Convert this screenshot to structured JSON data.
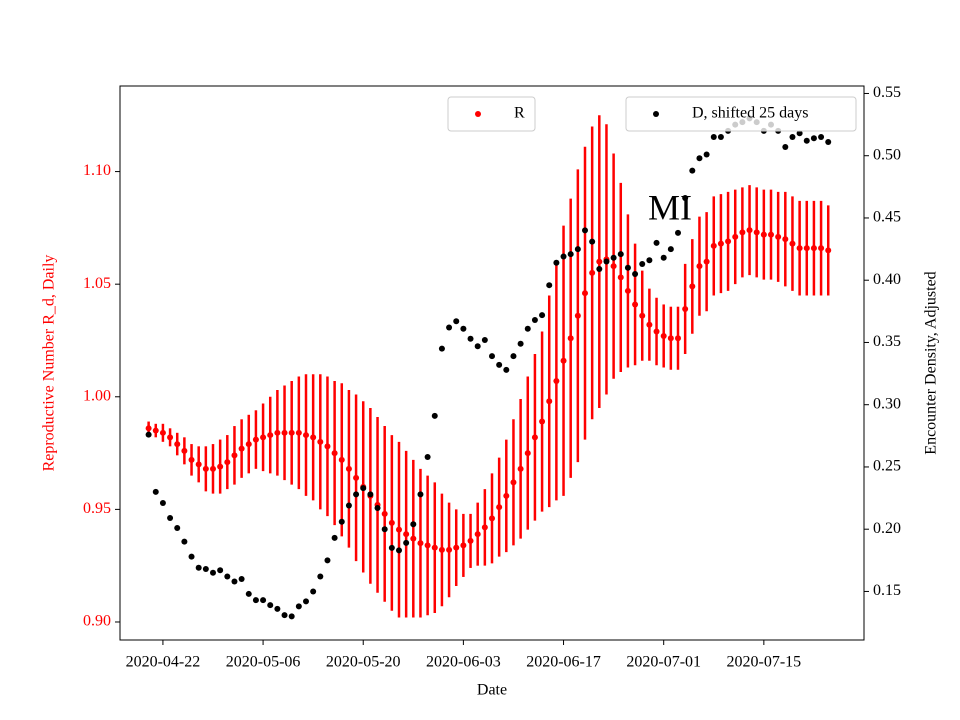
{
  "chart_data": {
    "type": "scatter",
    "annotation": "MI",
    "xlabel": "Date",
    "ylabel": "Reproductive Number R_d, Daily",
    "y2label": "Encounter Density, Adjusted",
    "x": [
      "2020-04-20",
      "2020-04-21",
      "2020-04-22",
      "2020-04-23",
      "2020-04-24",
      "2020-04-25",
      "2020-04-26",
      "2020-04-27",
      "2020-04-28",
      "2020-04-29",
      "2020-04-30",
      "2020-05-01",
      "2020-05-02",
      "2020-05-03",
      "2020-05-04",
      "2020-05-05",
      "2020-05-06",
      "2020-05-07",
      "2020-05-08",
      "2020-05-09",
      "2020-05-10",
      "2020-05-11",
      "2020-05-12",
      "2020-05-13",
      "2020-05-14",
      "2020-05-15",
      "2020-05-16",
      "2020-05-17",
      "2020-05-18",
      "2020-05-19",
      "2020-05-20",
      "2020-05-21",
      "2020-05-22",
      "2020-05-23",
      "2020-05-24",
      "2020-05-25",
      "2020-05-26",
      "2020-05-27",
      "2020-05-28",
      "2020-05-29",
      "2020-05-30",
      "2020-05-31",
      "2020-06-01",
      "2020-06-02",
      "2020-06-03",
      "2020-06-04",
      "2020-06-05",
      "2020-06-06",
      "2020-06-07",
      "2020-06-08",
      "2020-06-09",
      "2020-06-10",
      "2020-06-11",
      "2020-06-12",
      "2020-06-13",
      "2020-06-14",
      "2020-06-15",
      "2020-06-16",
      "2020-06-17",
      "2020-06-18",
      "2020-06-19",
      "2020-06-20",
      "2020-06-21",
      "2020-06-22",
      "2020-06-23",
      "2020-06-24",
      "2020-06-25",
      "2020-06-26",
      "2020-06-27",
      "2020-06-28",
      "2020-06-29",
      "2020-06-30",
      "2020-07-01",
      "2020-07-02",
      "2020-07-03",
      "2020-07-04",
      "2020-07-05",
      "2020-07-06",
      "2020-07-07",
      "2020-07-08",
      "2020-07-09",
      "2020-07-10",
      "2020-07-11",
      "2020-07-12",
      "2020-07-13",
      "2020-07-14",
      "2020-07-15",
      "2020-07-16",
      "2020-07-17",
      "2020-07-18",
      "2020-07-19",
      "2020-07-20",
      "2020-07-21",
      "2020-07-22",
      "2020-07-23",
      "2020-07-24"
    ],
    "series": [
      {
        "name": "R",
        "color": "#ff0000",
        "legend": "upper center",
        "values": [
          0.986,
          0.985,
          0.984,
          0.982,
          0.979,
          0.976,
          0.972,
          0.97,
          0.968,
          0.968,
          0.969,
          0.971,
          0.974,
          0.977,
          0.979,
          0.981,
          0.982,
          0.983,
          0.984,
          0.984,
          0.984,
          0.984,
          0.983,
          0.982,
          0.98,
          0.978,
          0.975,
          0.972,
          0.968,
          0.964,
          0.96,
          0.956,
          0.952,
          0.948,
          0.944,
          0.941,
          0.939,
          0.937,
          0.935,
          0.934,
          0.933,
          0.932,
          0.932,
          0.933,
          0.934,
          0.936,
          0.939,
          0.942,
          0.946,
          0.951,
          0.956,
          0.962,
          0.968,
          0.975,
          0.982,
          0.989,
          0.998,
          1.007,
          1.016,
          1.026,
          1.036,
          1.046,
          1.055,
          1.06,
          1.061,
          1.058,
          1.053,
          1.047,
          1.041,
          1.036,
          1.032,
          1.029,
          1.027,
          1.026,
          1.026,
          1.039,
          1.049,
          1.058,
          1.06,
          1.067,
          1.068,
          1.069,
          1.071,
          1.073,
          1.074,
          1.073,
          1.072,
          1.072,
          1.071,
          1.07,
          1.068,
          1.066,
          1.066,
          1.066,
          1.066,
          1.065
        ],
        "errors": [
          0.003,
          0.003,
          0.004,
          0.004,
          0.005,
          0.006,
          0.007,
          0.008,
          0.01,
          0.011,
          0.012,
          0.012,
          0.013,
          0.013,
          0.013,
          0.013,
          0.015,
          0.017,
          0.019,
          0.021,
          0.023,
          0.025,
          0.027,
          0.028,
          0.03,
          0.031,
          0.032,
          0.034,
          0.035,
          0.037,
          0.038,
          0.039,
          0.039,
          0.039,
          0.039,
          0.039,
          0.037,
          0.035,
          0.033,
          0.031,
          0.029,
          0.025,
          0.021,
          0.017,
          0.014,
          0.012,
          0.014,
          0.017,
          0.02,
          0.022,
          0.025,
          0.028,
          0.031,
          0.034,
          0.037,
          0.04,
          0.047,
          0.053,
          0.06,
          0.062,
          0.065,
          0.065,
          0.065,
          0.065,
          0.06,
          0.05,
          0.042,
          0.034,
          0.027,
          0.02,
          0.016,
          0.015,
          0.014,
          0.014,
          0.014,
          0.02,
          0.021,
          0.022,
          0.022,
          0.022,
          0.022,
          0.022,
          0.021,
          0.02,
          0.02,
          0.02,
          0.02,
          0.02,
          0.02,
          0.021,
          0.021,
          0.021,
          0.021,
          0.021,
          0.021,
          0.02
        ]
      },
      {
        "name": "D, shifted 25 days",
        "color": "#000000",
        "axis": "y2",
        "legend": "upper right",
        "values": [
          0.276,
          0.23,
          0.221,
          0.209,
          0.201,
          0.19,
          0.178,
          0.169,
          0.168,
          0.165,
          0.167,
          0.162,
          0.158,
          0.16,
          0.148,
          0.143,
          0.143,
          0.139,
          0.136,
          0.131,
          0.13,
          0.138,
          0.142,
          0.15,
          0.162,
          0.175,
          0.193,
          0.206,
          0.219,
          0.228,
          0.233,
          0.228,
          0.217,
          0.2,
          0.185,
          0.183,
          0.189,
          0.204,
          0.228,
          0.258,
          0.291,
          0.345,
          0.362,
          0.367,
          0.361,
          0.353,
          0.347,
          0.352,
          0.339,
          0.332,
          0.328,
          0.339,
          0.349,
          0.361,
          0.368,
          0.372,
          0.396,
          0.414,
          0.419,
          0.421,
          0.425,
          0.44,
          0.431,
          0.409,
          0.415,
          0.418,
          0.421,
          0.41,
          0.405,
          0.413,
          0.416,
          0.43,
          0.418,
          0.425,
          0.438,
          0.466,
          0.488,
          0.498,
          0.501,
          0.515,
          0.515,
          0.52,
          0.525,
          0.527,
          0.53,
          0.527,
          0.52,
          0.525,
          0.52,
          0.507,
          0.515,
          0.518,
          0.512,
          0.514,
          0.515,
          0.511
        ]
      }
    ],
    "xlim": [
      "2020-04-16",
      "2020-07-29"
    ],
    "xticks": [
      "2020-04-22",
      "2020-05-06",
      "2020-05-20",
      "2020-06-03",
      "2020-06-17",
      "2020-07-01",
      "2020-07-15"
    ],
    "ylim": [
      0.892,
      1.138
    ],
    "yticks": [
      {
        "value": 0.9,
        "label": "0.90"
      },
      0.95,
      {
        "value": 1.0,
        "label": "1.00"
      },
      1.05,
      {
        "value": 1.1,
        "label": "1.10"
      }
    ],
    "y2lim": [
      0.111,
      0.556
    ],
    "y2ticks": [
      0.15,
      {
        "value": 0.2,
        "label": "0.20"
      },
      0.25,
      {
        "value": 0.3,
        "label": "0.30"
      },
      0.35,
      {
        "value": 0.4,
        "label": "0.40"
      },
      0.45,
      {
        "value": 0.5,
        "label": "0.50"
      },
      0.55
    ]
  }
}
